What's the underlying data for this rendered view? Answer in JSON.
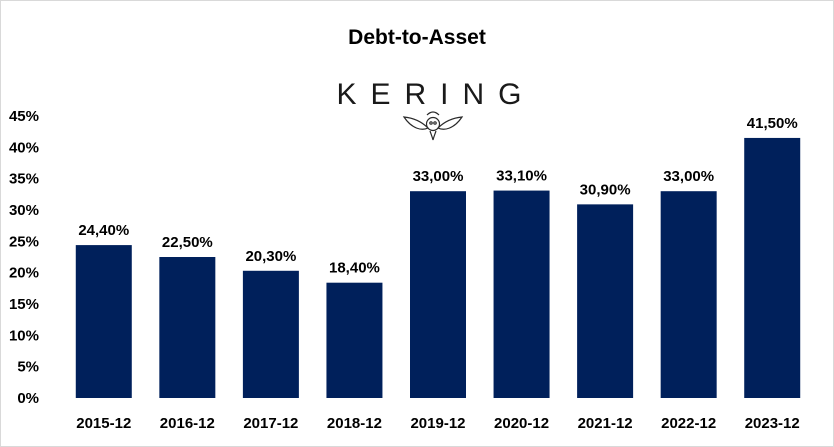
{
  "chart_data": {
    "type": "bar",
    "title": "Debt-to-Asset",
    "logo_text": "KERING",
    "categories": [
      "2015-12",
      "2016-12",
      "2017-12",
      "2018-12",
      "2019-12",
      "2020-12",
      "2021-12",
      "2022-12",
      "2023-12"
    ],
    "values": [
      24.4,
      22.5,
      20.3,
      18.4,
      33.0,
      33.1,
      30.9,
      33.0,
      41.5
    ],
    "data_labels": [
      "24,40%",
      "22,50%",
      "20,30%",
      "18,40%",
      "33,00%",
      "33,10%",
      "30,90%",
      "33,00%",
      "41,50%"
    ],
    "ylim": [
      0,
      45
    ],
    "yticks": [
      0,
      5,
      10,
      15,
      20,
      25,
      30,
      35,
      40,
      45
    ],
    "ytick_labels": [
      "0%",
      "5%",
      "10%",
      "15%",
      "20%",
      "25%",
      "30%",
      "35%",
      "40%",
      "45%"
    ],
    "xlabel": "",
    "ylabel": "",
    "grid": false,
    "legend": "none",
    "bar_color": "#00205b"
  }
}
